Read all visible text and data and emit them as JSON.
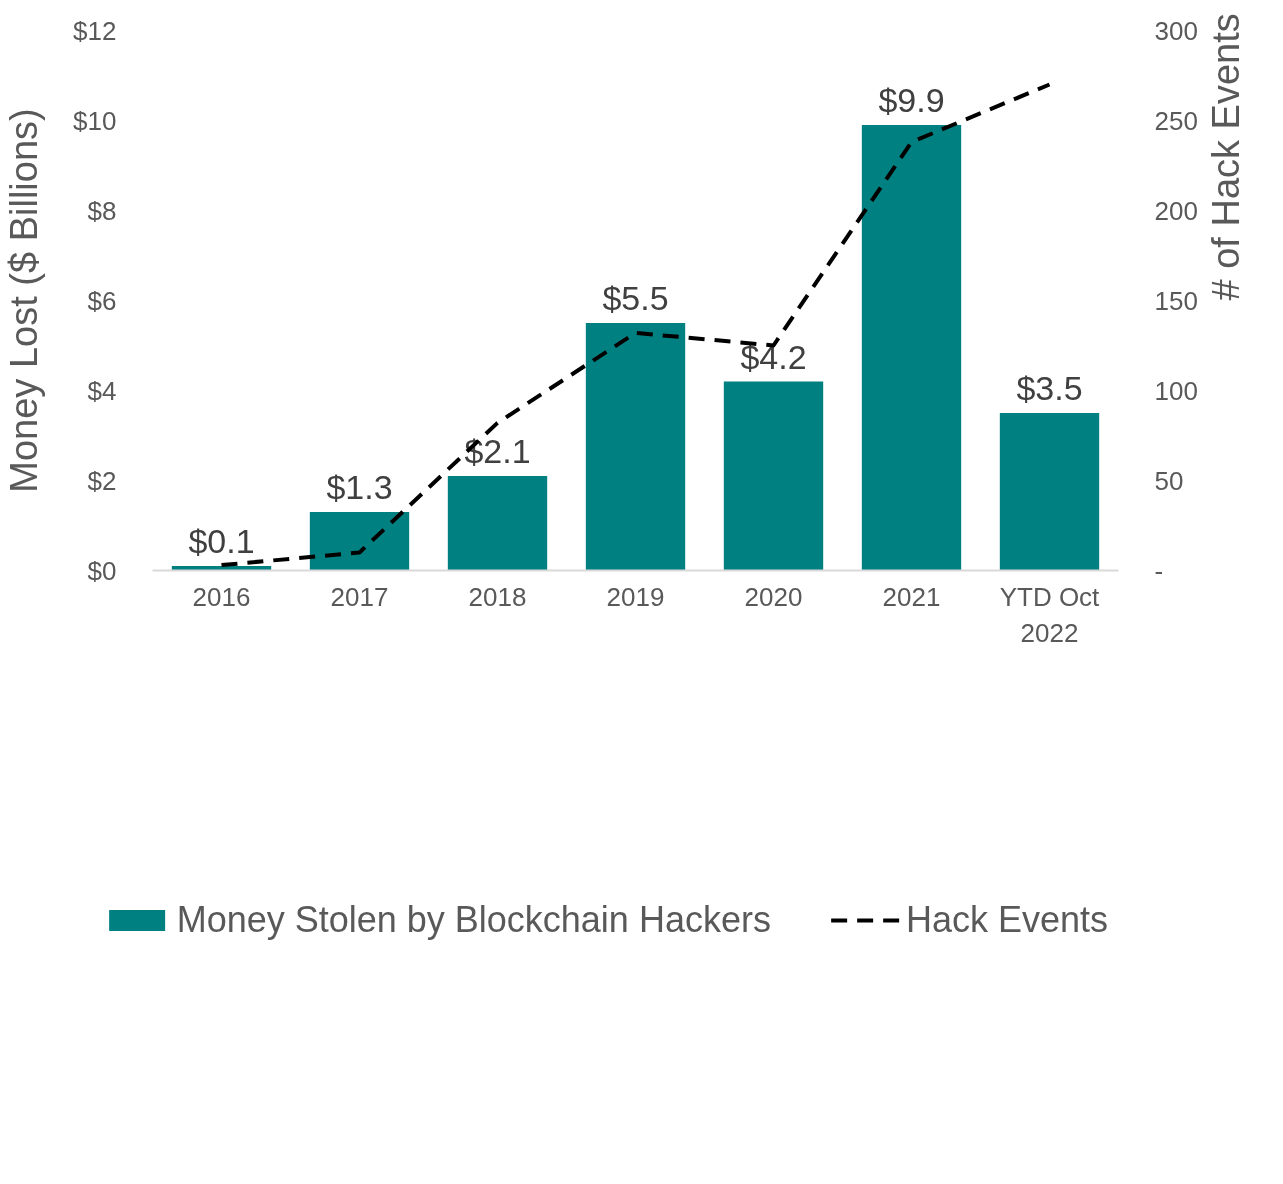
{
  "chart_data": {
    "type": "bar",
    "ylabel": "Money Lost ($ Billions)",
    "y2label": "# of Hack Events",
    "categories": [
      "2016",
      "2017",
      "2018",
      "2019",
      "2020",
      "2021",
      "YTD Oct 2022"
    ],
    "series": [
      {
        "name": "Money Stolen by Blockchain Hackers",
        "color": "#008080",
        "values": [
          0.1,
          1.3,
          2.1,
          5.5,
          4.2,
          9.9,
          3.5
        ],
        "value_labels": [
          "$0.1",
          "$1.3",
          "$2.1",
          "$5.5",
          "$4.2",
          "$9.9",
          "$3.5"
        ]
      },
      {
        "name": "Hack Events",
        "type": "line",
        "axis": "y2",
        "color": "#000000",
        "line_style": "dashed",
        "values": [
          3,
          10,
          82,
          132,
          125,
          238,
          270
        ]
      }
    ],
    "ylim": [
      0,
      12
    ],
    "yticks": [
      {
        "value": 0,
        "label": "$0"
      },
      {
        "value": 2,
        "label": "$2"
      },
      {
        "value": 4,
        "label": "$4"
      },
      {
        "value": 6,
        "label": "$6"
      },
      {
        "value": 8,
        "label": "$8"
      },
      {
        "value": 10,
        "label": "$10"
      },
      {
        "value": 12,
        "label": "$12"
      }
    ],
    "y2lim": [
      0,
      300
    ],
    "y2ticks": [
      {
        "value": 0,
        "label": "-"
      },
      50,
      100,
      150,
      200,
      250,
      300
    ],
    "grid": false,
    "legend": "bottom"
  }
}
